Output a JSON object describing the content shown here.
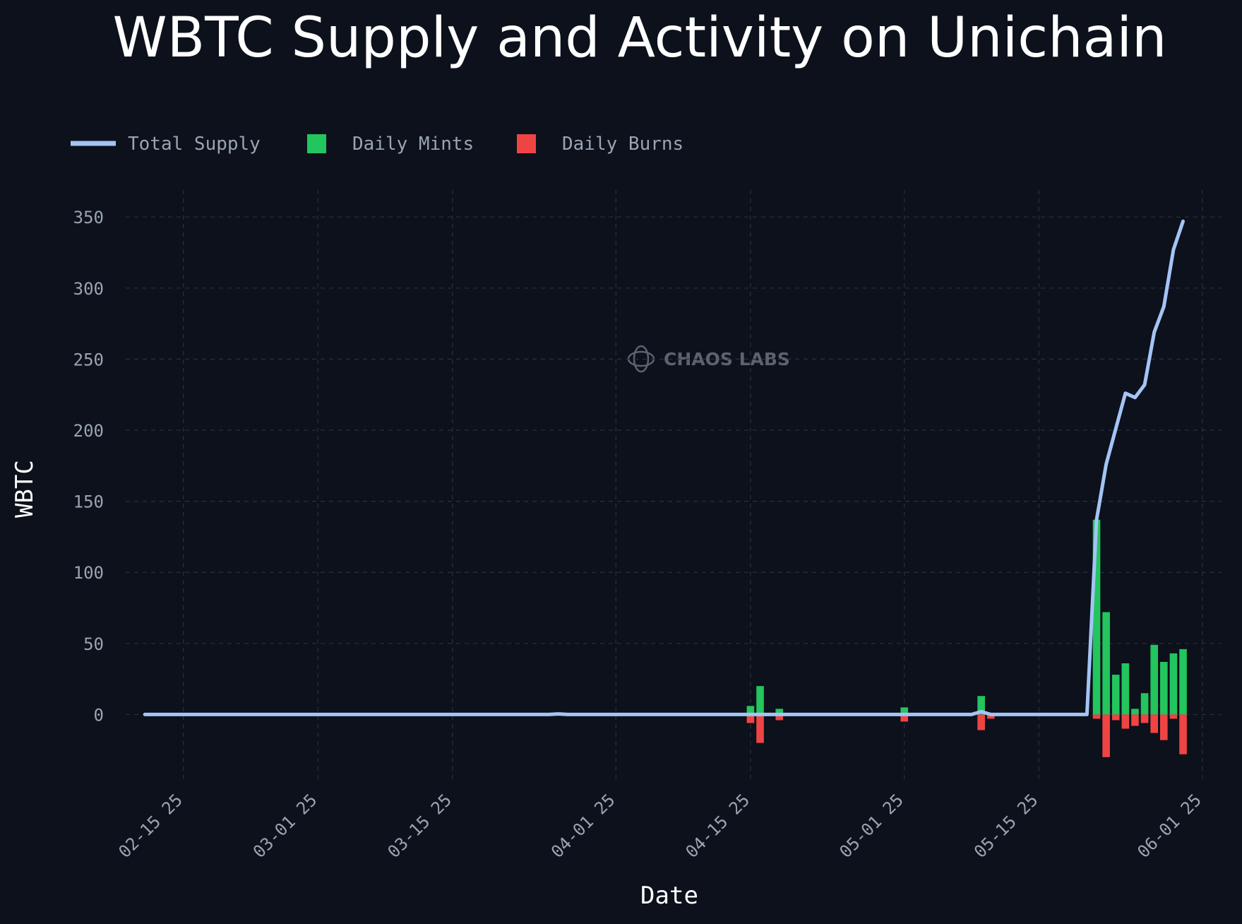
{
  "chart_data": {
    "type": "bar",
    "title": "WBTC Supply and Activity on Unichain",
    "xlabel": "Date",
    "ylabel": "WBTC",
    "watermark": "CHAOS LABS",
    "x_range": [
      "2025-02-09",
      "2025-06-03"
    ],
    "ylim": [
      -48,
      366
    ],
    "y_ticks": [
      0,
      50,
      100,
      150,
      200,
      250,
      300,
      350
    ],
    "x_ticks": [
      {
        "date": "2025-02-15",
        "label": "02-15 25"
      },
      {
        "date": "2025-03-01",
        "label": "03-01 25"
      },
      {
        "date": "2025-03-15",
        "label": "03-15 25"
      },
      {
        "date": "2025-04-01",
        "label": "04-01 25"
      },
      {
        "date": "2025-04-15",
        "label": "04-15 25"
      },
      {
        "date": "2025-05-01",
        "label": "05-01 25"
      },
      {
        "date": "2025-05-15",
        "label": "05-15 25"
      },
      {
        "date": "2025-06-01",
        "label": "06-01 25"
      }
    ],
    "grid": true,
    "legend_position": "top-left",
    "colors": {
      "total_supply": "#a5c4f5",
      "daily_mints": "#22c55e",
      "daily_burns": "#ef4444",
      "background": "#0c111c"
    },
    "series": [
      {
        "name": "Total Supply",
        "type": "line",
        "points": [
          {
            "x": "2025-02-11",
            "y": 0
          },
          {
            "x": "2025-03-25",
            "y": 0
          },
          {
            "x": "2025-03-26",
            "y": 0.4
          },
          {
            "x": "2025-03-27",
            "y": 0
          },
          {
            "x": "2025-04-15",
            "y": 0
          },
          {
            "x": "2025-04-16",
            "y": 0
          },
          {
            "x": "2025-04-17",
            "y": 0
          },
          {
            "x": "2025-04-18",
            "y": 0
          },
          {
            "x": "2025-05-01",
            "y": 0
          },
          {
            "x": "2025-05-08",
            "y": 0
          },
          {
            "x": "2025-05-09",
            "y": 2
          },
          {
            "x": "2025-05-10",
            "y": 0
          },
          {
            "x": "2025-05-20",
            "y": 0
          },
          {
            "x": "2025-05-21",
            "y": 137
          },
          {
            "x": "2025-05-22",
            "y": 176
          },
          {
            "x": "2025-05-23",
            "y": 201
          },
          {
            "x": "2025-05-24",
            "y": 226
          },
          {
            "x": "2025-05-25",
            "y": 223
          },
          {
            "x": "2025-05-26",
            "y": 232
          },
          {
            "x": "2025-05-27",
            "y": 269
          },
          {
            "x": "2025-05-28",
            "y": 287
          },
          {
            "x": "2025-05-29",
            "y": 327
          },
          {
            "x": "2025-05-30",
            "y": 347
          }
        ]
      },
      {
        "name": "Daily Mints",
        "type": "bar",
        "points": [
          {
            "x": "2025-04-15",
            "y": 6
          },
          {
            "x": "2025-04-16",
            "y": 20
          },
          {
            "x": "2025-04-18",
            "y": 4
          },
          {
            "x": "2025-05-01",
            "y": 5
          },
          {
            "x": "2025-05-09",
            "y": 13
          },
          {
            "x": "2025-05-21",
            "y": 137
          },
          {
            "x": "2025-05-22",
            "y": 72
          },
          {
            "x": "2025-05-23",
            "y": 28
          },
          {
            "x": "2025-05-24",
            "y": 36
          },
          {
            "x": "2025-05-25",
            "y": 4
          },
          {
            "x": "2025-05-26",
            "y": 15
          },
          {
            "x": "2025-05-27",
            "y": 49
          },
          {
            "x": "2025-05-28",
            "y": 37
          },
          {
            "x": "2025-05-29",
            "y": 43
          },
          {
            "x": "2025-05-30",
            "y": 46
          }
        ]
      },
      {
        "name": "Daily Burns",
        "type": "bar",
        "points": [
          {
            "x": "2025-04-15",
            "y": -6
          },
          {
            "x": "2025-04-16",
            "y": -20
          },
          {
            "x": "2025-04-18",
            "y": -4
          },
          {
            "x": "2025-05-01",
            "y": -5
          },
          {
            "x": "2025-05-09",
            "y": -11
          },
          {
            "x": "2025-05-10",
            "y": -3
          },
          {
            "x": "2025-05-21",
            "y": -3
          },
          {
            "x": "2025-05-22",
            "y": -30
          },
          {
            "x": "2025-05-23",
            "y": -4
          },
          {
            "x": "2025-05-24",
            "y": -10
          },
          {
            "x": "2025-05-25",
            "y": -8
          },
          {
            "x": "2025-05-26",
            "y": -6
          },
          {
            "x": "2025-05-27",
            "y": -13
          },
          {
            "x": "2025-05-28",
            "y": -18
          },
          {
            "x": "2025-05-29",
            "y": -3
          },
          {
            "x": "2025-05-30",
            "y": -28
          }
        ]
      }
    ]
  }
}
